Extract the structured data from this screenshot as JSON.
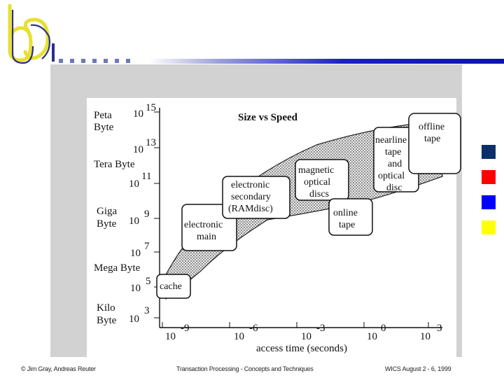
{
  "slide": {
    "accent_colors": [
      "#0a2f6a",
      "#ff0000",
      "#0000ff",
      "#ffff00"
    ],
    "footer": {
      "left": "© Jim Gray, Andreas Reuter",
      "center": "Transaction Processing - Concepts and Techniques",
      "right": "WICS August 2 - 6, 1999"
    }
  },
  "diagram": {
    "title": "Size vs Speed",
    "x_axis_label": "access time (seconds)",
    "x_ticks": [
      {
        "base": "10",
        "exp": "-9"
      },
      {
        "base": "10",
        "exp": "-6"
      },
      {
        "base": "10",
        "exp": "-3"
      },
      {
        "base": "10",
        "exp": "0"
      },
      {
        "base": "10",
        "exp": "3"
      }
    ],
    "y_ticks": [
      {
        "name_line1": "Peta",
        "name_line2": "Byte",
        "base": "10",
        "exp": "15"
      },
      {
        "name_line1": "",
        "name_line2": "",
        "base": "10",
        "exp": "13"
      },
      {
        "name_line1": "Tera Byte",
        "name_line2": "",
        "base": "10",
        "exp": "11"
      },
      {
        "name_line1": "Giga",
        "name_line2": "Byte",
        "base": "10",
        "exp": "9"
      },
      {
        "name_line1": "",
        "name_line2": "",
        "base": "10",
        "exp": "7"
      },
      {
        "name_line1": "Mega Byte",
        "name_line2": "",
        "base": "10",
        "exp": "5"
      },
      {
        "name_line1": "Kilo",
        "name_line2": "Byte",
        "base": "10",
        "exp": "3"
      }
    ],
    "boxes": [
      {
        "lines": [
          "cache"
        ]
      },
      {
        "lines": [
          "electronic",
          "main"
        ]
      },
      {
        "lines": [
          "electronic",
          "secondary",
          "(RAMdisc)"
        ]
      },
      {
        "lines": [
          "magnetic",
          "optical",
          "discs"
        ]
      },
      {
        "lines": [
          "online",
          "tape"
        ]
      },
      {
        "lines": [
          "nearline",
          "tape",
          "and",
          "optical",
          "disc"
        ]
      },
      {
        "lines": [
          "offline",
          "tape"
        ]
      }
    ]
  }
}
